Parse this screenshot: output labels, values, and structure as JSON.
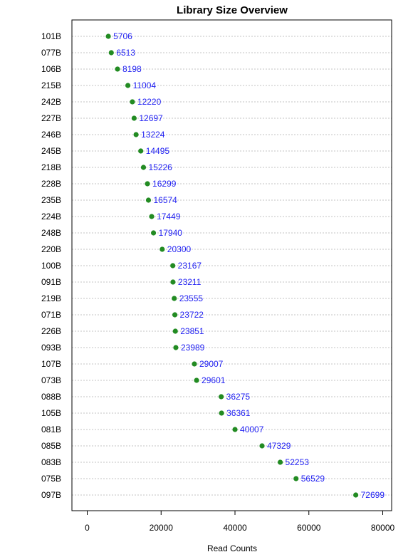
{
  "chart_data": {
    "type": "scatter",
    "title": "Library Size Overview",
    "xlabel": "Read Counts",
    "ylabel": "",
    "xlim": [
      0,
      80000
    ],
    "x_ticks": [
      "0",
      "20000",
      "40000",
      "60000",
      "80000"
    ],
    "x_tick_values": [
      0,
      20000,
      40000,
      60000,
      80000
    ],
    "grid": "horizontal dotted",
    "point_color": "#228b22",
    "label_color": "#1f1ff2",
    "categories": [
      "101B",
      "077B",
      "106B",
      "215B",
      "242B",
      "227B",
      "246B",
      "245B",
      "218B",
      "228B",
      "235B",
      "224B",
      "248B",
      "220B",
      "100B",
      "091B",
      "219B",
      "071B",
      "226B",
      "093B",
      "107B",
      "073B",
      "088B",
      "105B",
      "081B",
      "085B",
      "083B",
      "075B",
      "097B"
    ],
    "values": [
      5706,
      6513,
      8198,
      11004,
      12220,
      12697,
      13224,
      14495,
      15226,
      16299,
      16574,
      17449,
      17940,
      20300,
      23167,
      23211,
      23555,
      23722,
      23851,
      23989,
      29007,
      29601,
      36275,
      36361,
      40007,
      47329,
      52253,
      56529,
      72699
    ]
  }
}
